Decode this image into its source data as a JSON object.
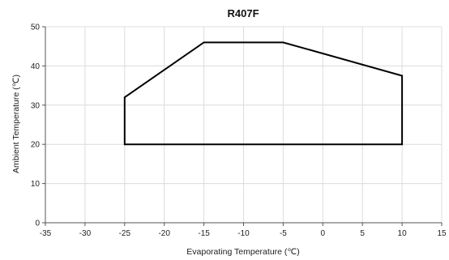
{
  "chart_data": {
    "type": "line",
    "title": "R407F",
    "xlabel": "Evaporating Temperature (℃)",
    "ylabel": "Ambient Temperature (℃)",
    "xlim": [
      -35,
      15
    ],
    "ylim": [
      0,
      50
    ],
    "x_ticks": [
      -35,
      -30,
      -25,
      -20,
      -15,
      -10,
      -5,
      0,
      5,
      10,
      15
    ],
    "y_ticks": [
      0,
      10,
      20,
      30,
      40,
      50
    ],
    "grid": true,
    "series": [
      {
        "closed": true,
        "points": [
          {
            "x": -25,
            "y": 20
          },
          {
            "x": -25,
            "y": 32
          },
          {
            "x": -15,
            "y": 46
          },
          {
            "x": -5,
            "y": 46
          },
          {
            "x": 10,
            "y": 37.5
          },
          {
            "x": 10,
            "y": 20
          }
        ]
      }
    ]
  }
}
